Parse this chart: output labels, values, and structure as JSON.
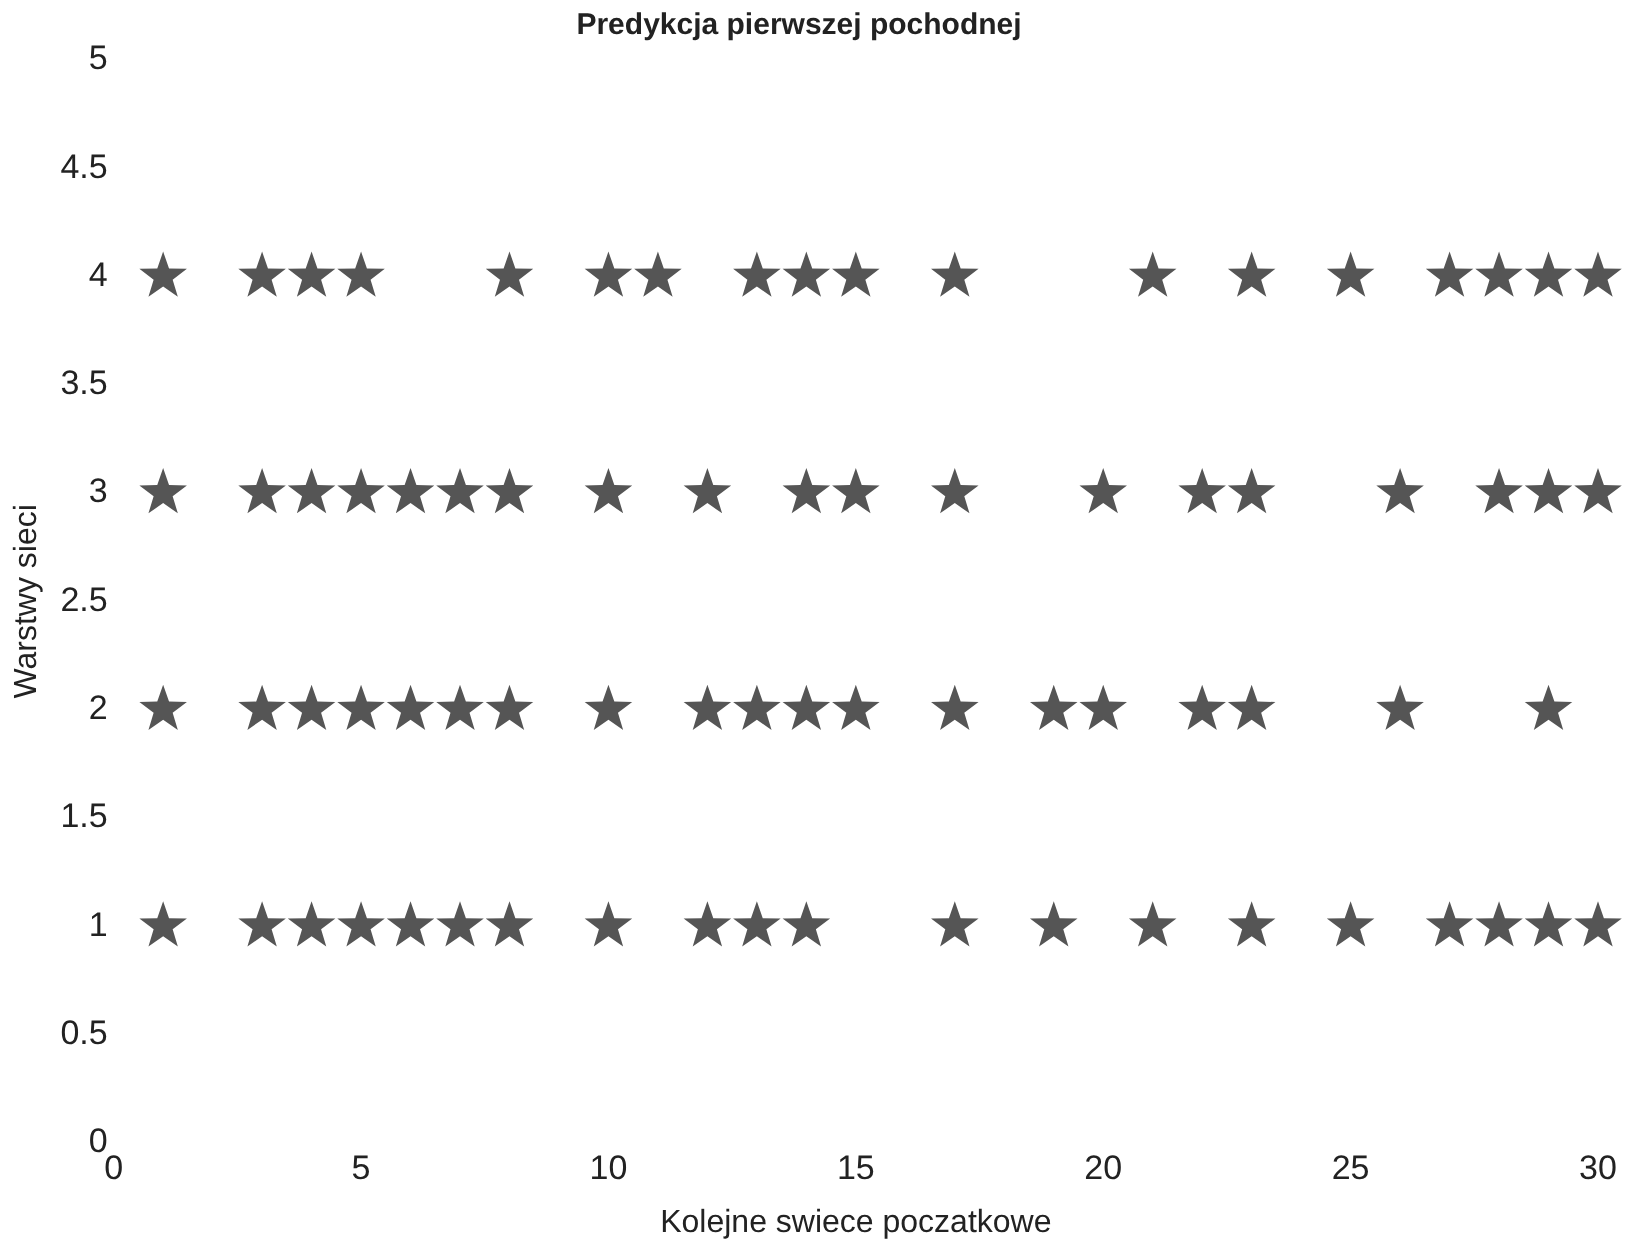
{
  "chart_data": {
    "type": "scatter",
    "title": "Predykcja pierwszej pochodnej",
    "xlabel": "Kolejne swiece poczatkowe",
    "ylabel": "Warstwy sieci",
    "marker": "star",
    "grid": false,
    "xlim": [
      0,
      30
    ],
    "xticks": [
      0,
      5,
      10,
      15,
      20,
      25,
      30
    ],
    "ylim": [
      0,
      5
    ],
    "yticks": [
      0,
      0.5,
      1,
      1.5,
      2,
      2.5,
      3,
      3.5,
      4,
      4.5,
      5
    ],
    "series": [
      {
        "color": "#555555",
        "x": [
          1,
          3,
          4,
          5,
          8,
          10,
          11,
          13,
          14,
          15,
          17,
          21,
          23,
          25,
          27,
          28,
          29,
          30
        ],
        "values": [
          4,
          4,
          4,
          4,
          4,
          4,
          4,
          4,
          4,
          4,
          4,
          4,
          4,
          4,
          4,
          4,
          4,
          4
        ]
      },
      {
        "color": "#555555",
        "x": [
          1,
          3,
          4,
          5,
          6,
          7,
          8,
          10,
          12,
          14,
          15,
          17,
          20,
          22,
          23,
          26,
          28,
          29,
          30
        ],
        "values": [
          3,
          3,
          3,
          3,
          3,
          3,
          3,
          3,
          3,
          3,
          3,
          3,
          3,
          3,
          3,
          3,
          3,
          3,
          3
        ]
      },
      {
        "color": "#555555",
        "x": [
          1,
          3,
          4,
          5,
          6,
          7,
          8,
          10,
          12,
          13,
          14,
          15,
          17,
          19,
          20,
          22,
          23,
          26,
          29
        ],
        "values": [
          2,
          2,
          2,
          2,
          2,
          2,
          2,
          2,
          2,
          2,
          2,
          2,
          2,
          2,
          2,
          2,
          2,
          2,
          2
        ]
      },
      {
        "color": "#555555",
        "x": [
          1,
          3,
          4,
          5,
          6,
          7,
          8,
          10,
          12,
          13,
          14,
          17,
          19,
          21,
          23,
          25,
          27,
          28,
          29,
          30
        ],
        "values": [
          1,
          1,
          1,
          1,
          1,
          1,
          1,
          1,
          1,
          1,
          1,
          1,
          1,
          1,
          1,
          1,
          1,
          1,
          1,
          1
        ]
      }
    ]
  }
}
